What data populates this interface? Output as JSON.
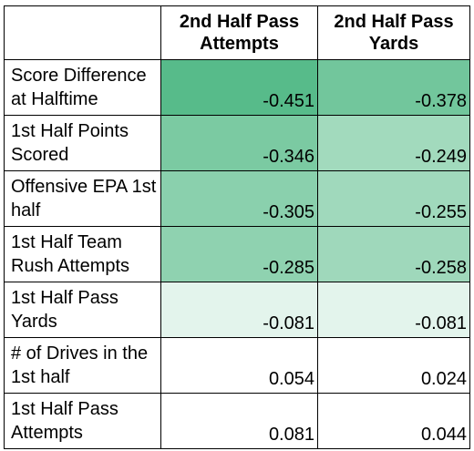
{
  "table": {
    "headers": [
      "",
      "2nd Half Pass Attempts",
      "2nd Half Pass Yards"
    ],
    "rows": [
      {
        "label": "Score Difference at Halftime",
        "values": [
          "-0.451",
          "-0.378"
        ],
        "colors": [
          "#57bb8a",
          "#72c69c"
        ]
      },
      {
        "label": "1st Half Points Scored",
        "values": [
          "-0.346",
          "-0.249"
        ],
        "colors": [
          "#7bcaa2",
          "#a2dabd"
        ]
      },
      {
        "label": "Offensive EPA 1st half",
        "values": [
          "-0.305",
          "-0.255"
        ],
        "colors": [
          "#8ad0ad",
          "#a0d9bc"
        ]
      },
      {
        "label": "1st Half Team Rush Attempts",
        "values": [
          "-0.285",
          "-0.258"
        ],
        "colors": [
          "#8fd2b0",
          "#9fd8bb"
        ]
      },
      {
        "label": "1st Half Pass Yards",
        "values": [
          "-0.081",
          "-0.081"
        ],
        "colors": [
          "#e3f4ec",
          "#e3f4ec"
        ]
      },
      {
        "label": "# of Drives in the 1st half",
        "values": [
          "0.054",
          "0.024"
        ],
        "colors": [
          "#ffffff",
          "#ffffff"
        ]
      },
      {
        "label": "1st Half Pass Attempts",
        "values": [
          "0.081",
          "0.044"
        ],
        "colors": [
          "#ffffff",
          "#ffffff"
        ]
      }
    ]
  }
}
